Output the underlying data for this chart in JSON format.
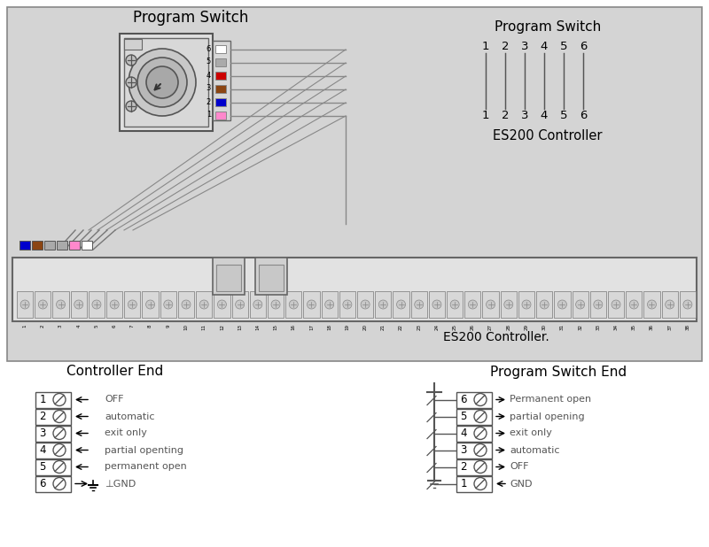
{
  "bg_top": "#d4d4d4",
  "bg_bottom": "#ffffff",
  "title_program_switch": "Program Switch",
  "title_ps_right": "Program Switch",
  "label_es200_controller": "ES200 Controller",
  "label_es200_controller2": "ES200 Controller.",
  "label_controller_end": "Controller End",
  "label_switch_end": "Program Switch End",
  "wire_colors": [
    "#ffffff",
    "#aaaaaa",
    "#cc0000",
    "#8B4513",
    "#0000cc",
    "#ff88cc"
  ],
  "wire_labels": [
    "6",
    "5",
    "4",
    "3",
    "2",
    "1"
  ],
  "ps_numbers_top": [
    "1",
    "2",
    "3",
    "4",
    "5",
    "6"
  ],
  "ps_numbers_bottom": [
    "1",
    "2",
    "3",
    "4",
    "5",
    "6"
  ],
  "controller_pins": [
    "1",
    "2",
    "3",
    "4",
    "5",
    "6"
  ],
  "controller_labels": [
    "OFF",
    "automatic",
    "exit only",
    "partial openting",
    "permanent open",
    "⊥GND"
  ],
  "controller_arrows": [
    "left",
    "left",
    "left",
    "left",
    "left",
    "right"
  ],
  "switch_pins": [
    "6",
    "5",
    "4",
    "3",
    "2",
    "1"
  ],
  "switch_labels": [
    "Permanent open",
    "partial opening",
    "exit only",
    "automatic",
    "OFF",
    "GND"
  ],
  "switch_arrows": [
    "right",
    "right",
    "right",
    "right",
    "right",
    "left"
  ],
  "color_dots": [
    "#0000cc",
    "#8B4513",
    "#aaaaaa",
    "#aaaaaa",
    "#ff88cc",
    "#ffffff"
  ],
  "terminal_nums": [
    "1",
    "2",
    "3",
    "4",
    "5",
    "6",
    "7",
    "8",
    "9",
    "10",
    "11",
    "12",
    "13",
    "14",
    "15",
    "16",
    "17",
    "18",
    "19",
    "20",
    "21",
    "22",
    "23",
    "24",
    "25",
    "26",
    "27",
    "28",
    "29",
    "30",
    "31",
    "32",
    "33",
    "34",
    "35",
    "36",
    "37",
    "38"
  ]
}
